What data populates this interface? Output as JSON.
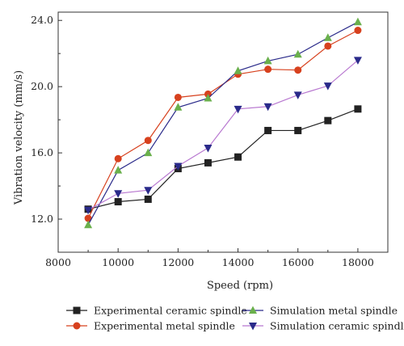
{
  "chart_data": {
    "type": "line",
    "xlabel": "Speed (rpm)",
    "ylabel": "Vibration velocity (mm/s)",
    "xlim": [
      8000,
      19000
    ],
    "ylim": [
      10.0,
      24.5
    ],
    "x_ticks": [
      8000,
      10000,
      12000,
      14000,
      16000,
      18000
    ],
    "x_tick_labels": [
      "8000",
      "10000",
      "12000",
      "14000",
      "16000",
      "18000"
    ],
    "y_ticks": [
      12.0,
      16.0,
      20.0,
      24.0
    ],
    "y_tick_labels": [
      "12.0",
      "16.0",
      "20.0",
      "24.0"
    ],
    "grid": false,
    "legend_position": "bottom",
    "x": [
      9000,
      10000,
      11000,
      12000,
      13000,
      14000,
      15000,
      16000,
      17000,
      18000
    ],
    "series": [
      {
        "name": "Experimental ceramic spindle",
        "color": "#222222",
        "marker": "square",
        "values": [
          12.6,
          13.05,
          13.2,
          15.05,
          15.4,
          15.75,
          17.35,
          17.35,
          17.95,
          18.65
        ]
      },
      {
        "name": "Experimental metal spindle",
        "color": "#d7411e",
        "marker": "circle",
        "values": [
          12.05,
          15.65,
          16.75,
          19.35,
          19.55,
          20.75,
          21.05,
          21.0,
          22.45,
          23.4
        ]
      },
      {
        "name": "Simulation metal spindle",
        "color": "#2a2a8a",
        "marker": "triangle-up",
        "marker_color": "#6ab04c",
        "values": [
          11.65,
          14.95,
          16.0,
          18.75,
          19.3,
          20.95,
          21.55,
          21.95,
          22.95,
          23.9
        ]
      },
      {
        "name": "Simulation ceramic spindle",
        "color": "#b878d0",
        "marker": "triangle-down",
        "marker_color": "#2a2a8a",
        "values": [
          12.55,
          13.55,
          13.75,
          15.2,
          16.3,
          18.65,
          18.8,
          19.5,
          20.05,
          21.6
        ]
      }
    ]
  }
}
